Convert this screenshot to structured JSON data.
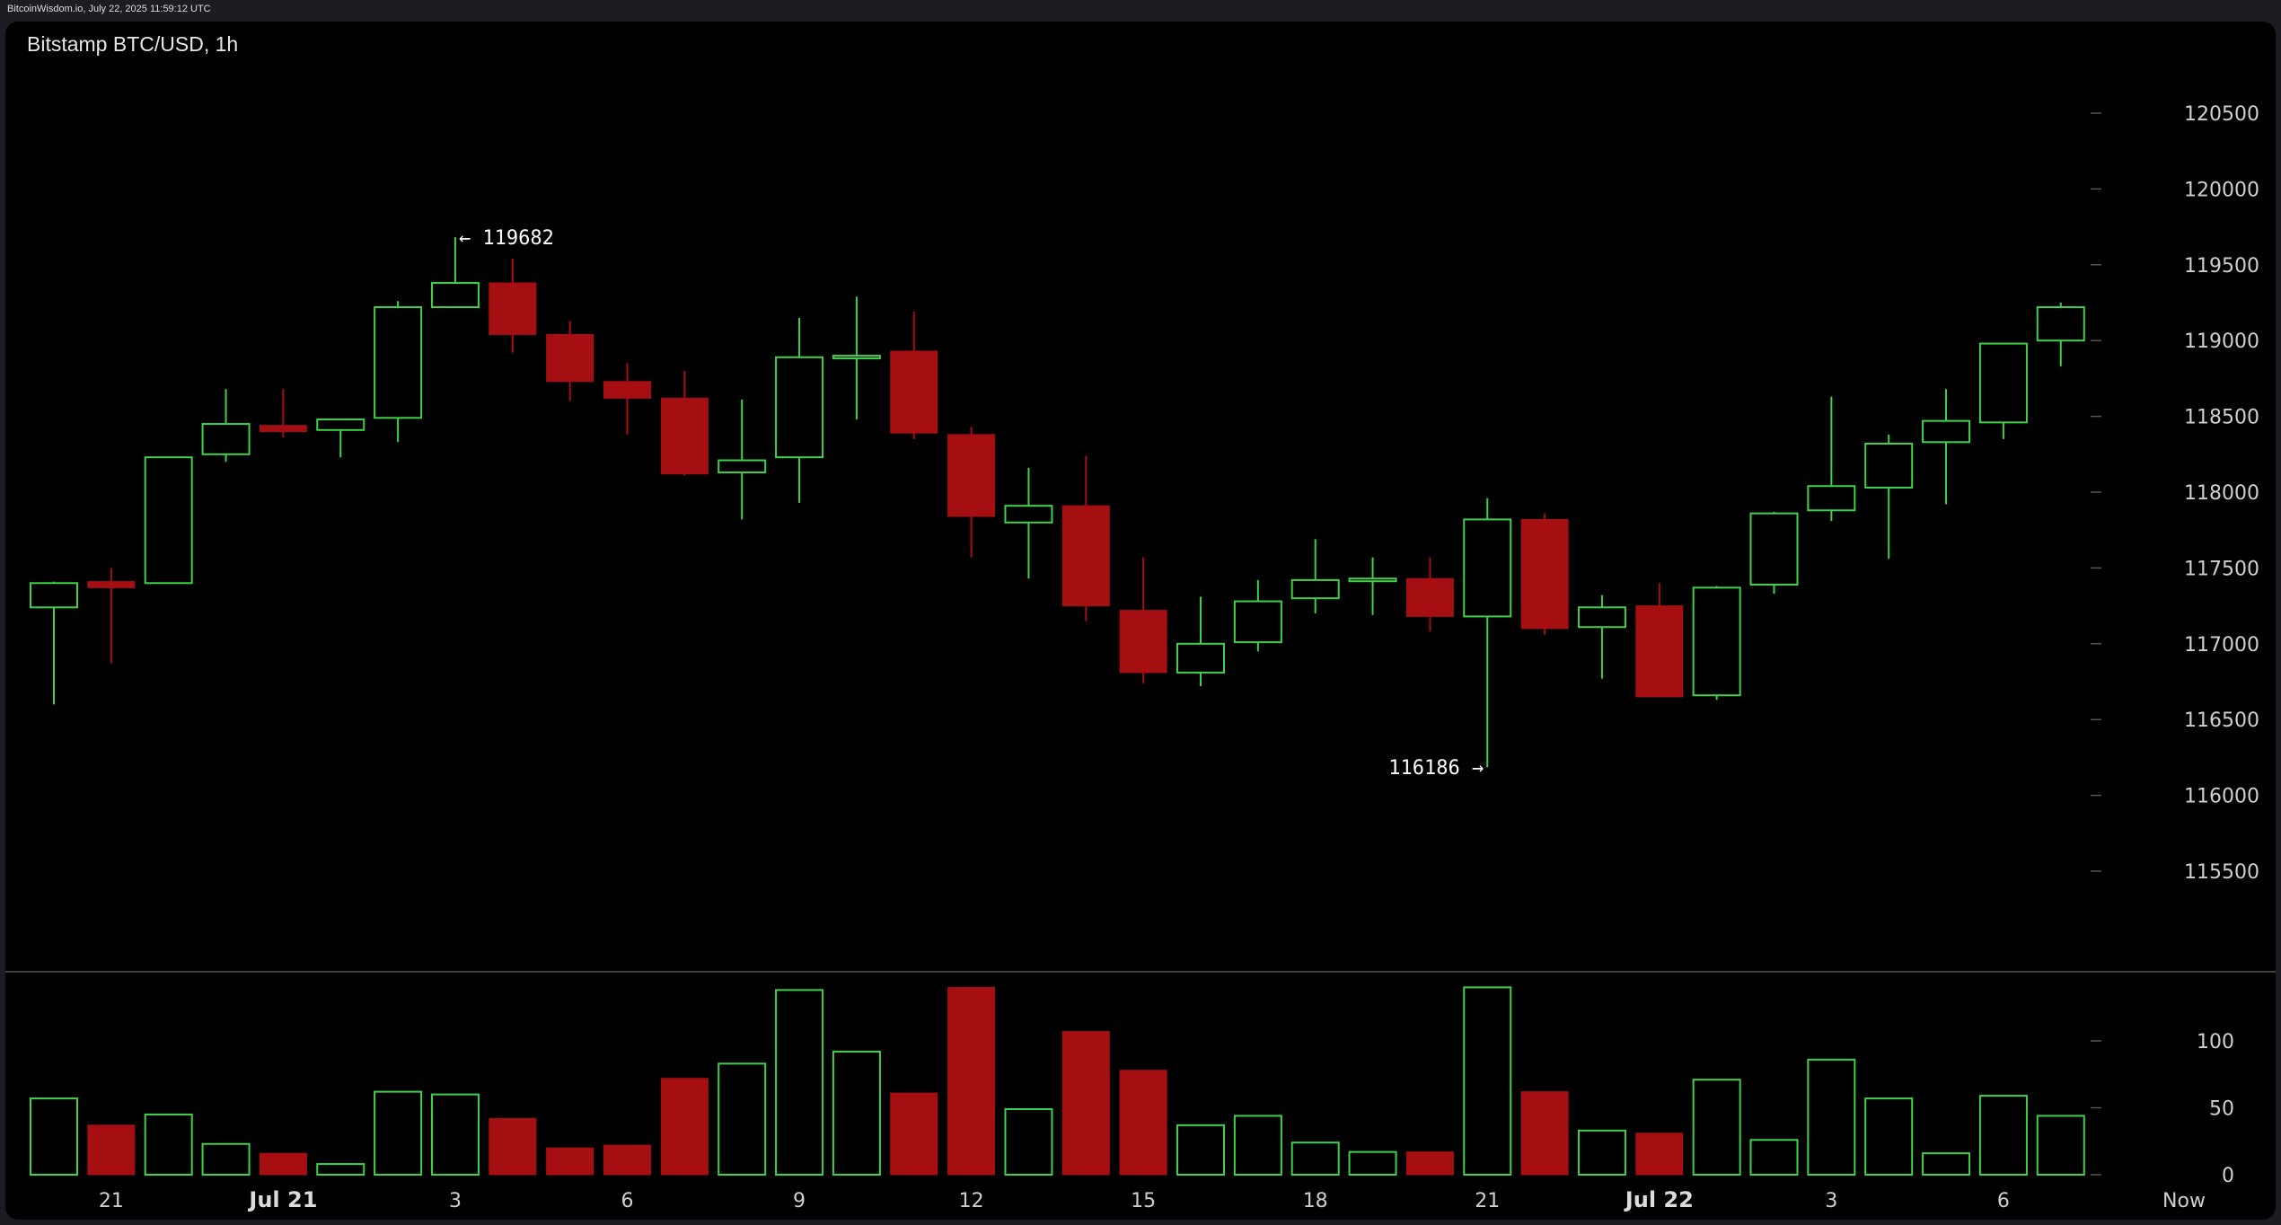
{
  "header": {
    "source": "BitcoinWisdom.io, July 22, 2025 11:59:12 UTC"
  },
  "chart_data": {
    "type": "candlestick",
    "title": "Bitstamp BTC/USD, 1h",
    "price_ticks": [
      120500,
      120000,
      119500,
      119000,
      118500,
      118000,
      117500,
      117000,
      116500,
      116000,
      115500
    ],
    "volume_ticks": [
      100,
      50,
      0
    ],
    "time_labels": [
      {
        "label": "21",
        "index": 1,
        "bold": false
      },
      {
        "label": "Jul 21",
        "index": 4,
        "bold": true
      },
      {
        "label": "3",
        "index": 7,
        "bold": false
      },
      {
        "label": "6",
        "index": 10,
        "bold": false
      },
      {
        "label": "9",
        "index": 13,
        "bold": false
      },
      {
        "label": "12",
        "index": 16,
        "bold": false
      },
      {
        "label": "15",
        "index": 19,
        "bold": false
      },
      {
        "label": "18",
        "index": 22,
        "bold": false
      },
      {
        "label": "21",
        "index": 25,
        "bold": false
      },
      {
        "label": "Jul 22",
        "index": 28,
        "bold": true
      },
      {
        "label": "3",
        "index": 31,
        "bold": false
      },
      {
        "label": "6",
        "index": 34,
        "bold": false
      },
      {
        "label": "Now",
        "index": 37,
        "bold": false
      }
    ],
    "candles": [
      {
        "o": 117240,
        "h": 117410,
        "l": 116600,
        "c": 117400,
        "v": 57
      },
      {
        "o": 117410,
        "h": 117500,
        "l": 116870,
        "c": 117370,
        "v": 37
      },
      {
        "o": 117400,
        "h": 118230,
        "l": 117400,
        "c": 118230,
        "v": 45
      },
      {
        "o": 118250,
        "h": 118680,
        "l": 118200,
        "c": 118450,
        "v": 23
      },
      {
        "o": 118440,
        "h": 118680,
        "l": 118360,
        "c": 118400,
        "v": 16
      },
      {
        "o": 118410,
        "h": 118470,
        "l": 118230,
        "c": 118480,
        "v": 8
      },
      {
        "o": 118490,
        "h": 119260,
        "l": 118330,
        "c": 119220,
        "v": 62
      },
      {
        "o": 119220,
        "h": 119682,
        "l": 119220,
        "c": 119380,
        "v": 60
      },
      {
        "o": 119380,
        "h": 119540,
        "l": 118920,
        "c": 119040,
        "v": 42
      },
      {
        "o": 119040,
        "h": 119130,
        "l": 118600,
        "c": 118730,
        "v": 20
      },
      {
        "o": 118730,
        "h": 118850,
        "l": 118380,
        "c": 118620,
        "v": 22
      },
      {
        "o": 118620,
        "h": 118800,
        "l": 118110,
        "c": 118120,
        "v": 72
      },
      {
        "o": 118130,
        "h": 118610,
        "l": 117820,
        "c": 118210,
        "v": 83
      },
      {
        "o": 118230,
        "h": 119150,
        "l": 117930,
        "c": 118890,
        "v": 138
      },
      {
        "o": 118890,
        "h": 119290,
        "l": 118480,
        "c": 118900,
        "v": 92
      },
      {
        "o": 118930,
        "h": 119190,
        "l": 118350,
        "c": 118390,
        "v": 61
      },
      {
        "o": 118380,
        "h": 118430,
        "l": 117570,
        "c": 117840,
        "v": 140
      },
      {
        "o": 117800,
        "h": 118160,
        "l": 117430,
        "c": 117910,
        "v": 49
      },
      {
        "o": 117910,
        "h": 118240,
        "l": 117150,
        "c": 117250,
        "v": 107
      },
      {
        "o": 117220,
        "h": 117570,
        "l": 116740,
        "c": 116810,
        "v": 78
      },
      {
        "o": 116810,
        "h": 117310,
        "l": 116720,
        "c": 117000,
        "v": 37
      },
      {
        "o": 117010,
        "h": 117420,
        "l": 116950,
        "c": 117280,
        "v": 44
      },
      {
        "o": 117300,
        "h": 117690,
        "l": 117200,
        "c": 117420,
        "v": 24
      },
      {
        "o": 117430,
        "h": 117570,
        "l": 117190,
        "c": 117430,
        "v": 17
      },
      {
        "o": 117430,
        "h": 117570,
        "l": 117080,
        "c": 117180,
        "v": 17
      },
      {
        "o": 117180,
        "h": 117960,
        "l": 116186,
        "c": 117820,
        "v": 140
      },
      {
        "o": 117820,
        "h": 117860,
        "l": 117060,
        "c": 117100,
        "v": 62
      },
      {
        "o": 117110,
        "h": 117320,
        "l": 116770,
        "c": 117240,
        "v": 33
      },
      {
        "o": 117250,
        "h": 117400,
        "l": 116650,
        "c": 116650,
        "v": 31
      },
      {
        "o": 116660,
        "h": 117380,
        "l": 116630,
        "c": 117370,
        "v": 71
      },
      {
        "o": 117390,
        "h": 117870,
        "l": 117330,
        "c": 117860,
        "v": 26
      },
      {
        "o": 117880,
        "h": 118630,
        "l": 117810,
        "c": 118040,
        "v": 86
      },
      {
        "o": 118030,
        "h": 118380,
        "l": 117560,
        "c": 118320,
        "v": 57
      },
      {
        "o": 118330,
        "h": 118680,
        "l": 117920,
        "c": 118470,
        "v": 16
      },
      {
        "o": 118460,
        "h": 118980,
        "l": 118350,
        "c": 118980,
        "v": 59
      },
      {
        "o": 119000,
        "h": 119250,
        "l": 118830,
        "c": 119220,
        "v": 44
      }
    ],
    "annotations": {
      "high": {
        "value": 119682,
        "label": "← 119682",
        "index": 7
      },
      "low": {
        "value": 116186,
        "label": "116186 →",
        "index": 25
      }
    },
    "colors": {
      "up": "#3fd14a",
      "down": "#a50f12",
      "background": "#000000",
      "divider": "#555555"
    }
  }
}
